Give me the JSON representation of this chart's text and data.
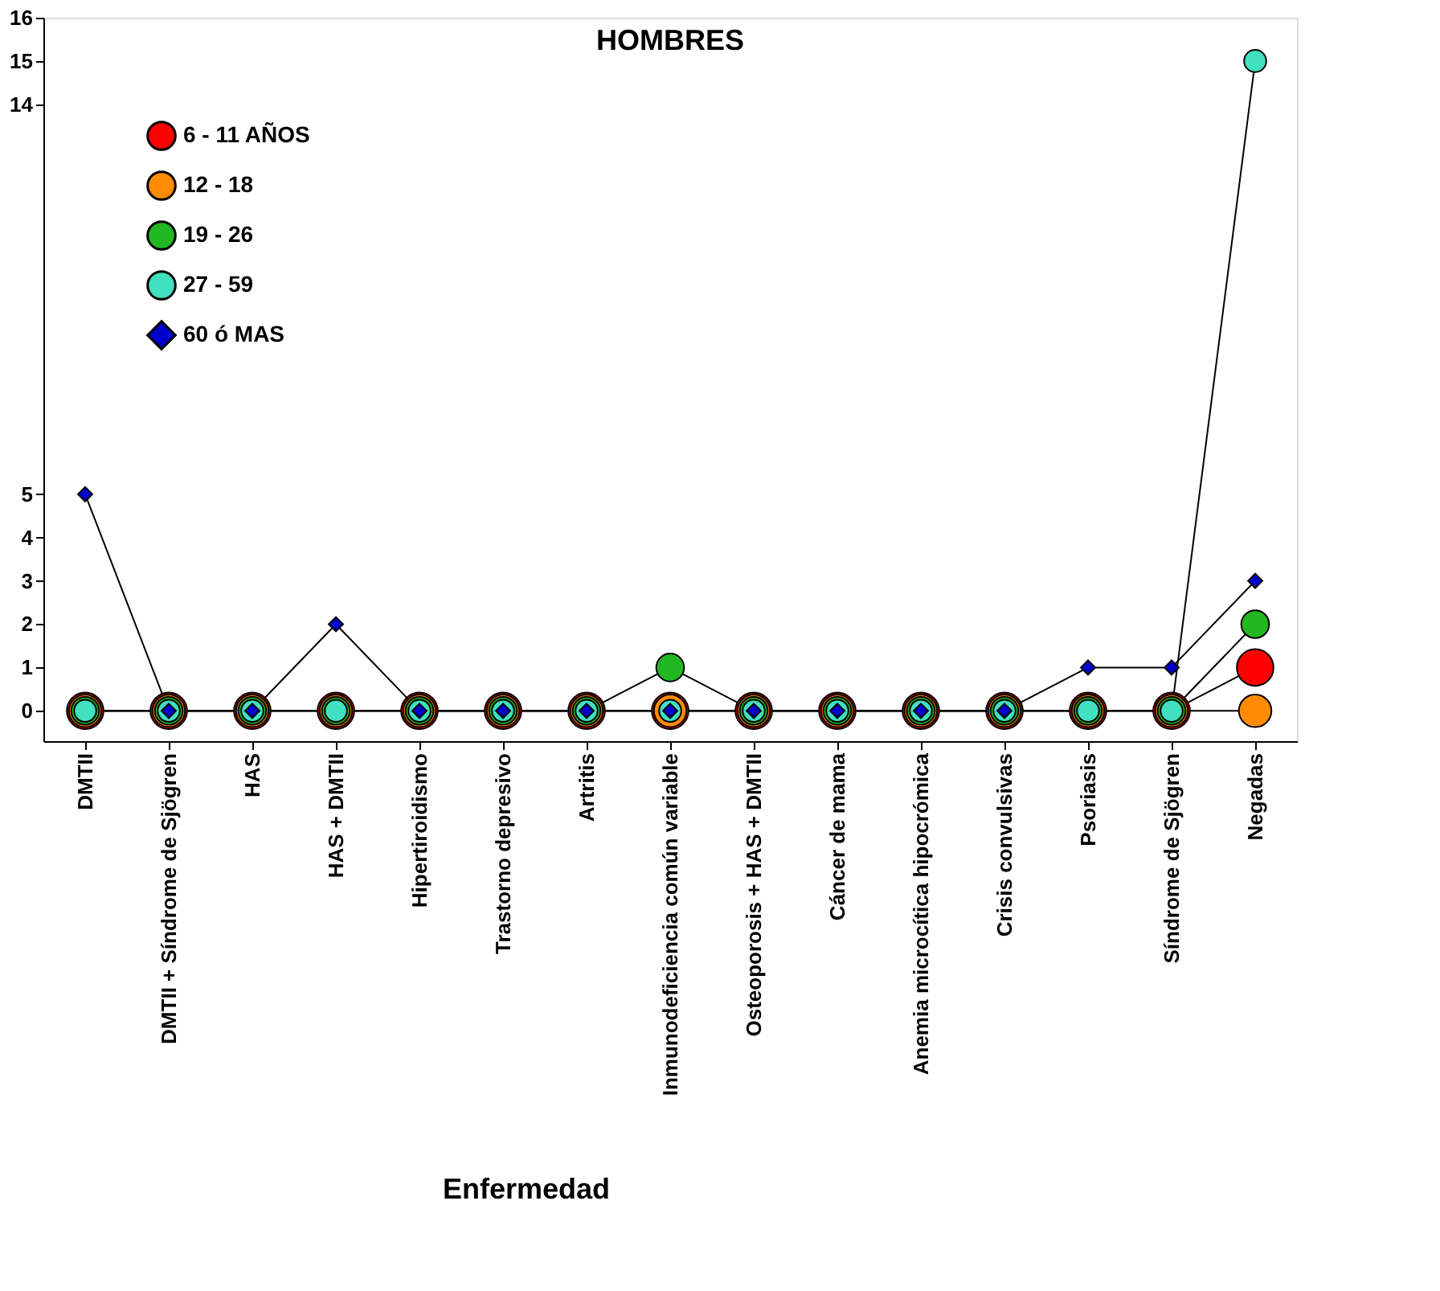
{
  "chart_data": {
    "type": "line",
    "title": "HOMBRES",
    "xlabel": "Enfermedad",
    "categories": [
      "DMTII",
      "DMTII + Síndrome de Sjögren",
      "HAS",
      "HAS + DMTII",
      "Hipertiroidismo",
      "Trastorno depresivo",
      "Artritis",
      "Inmunodeficiencia común variable",
      "Osteoporosis + HAS + DMTII",
      "Cáncer de mama",
      "Anemia microcítica hipocrómica",
      "Crisis convulsivas",
      "Psoriasis",
      "Síndrome de Sjögren",
      "Negadas"
    ],
    "series": [
      {
        "name": "6 - 11 AÑOS",
        "color": "#ff0000",
        "marker": "circle",
        "values": [
          0,
          0,
          0,
          0,
          0,
          0,
          0,
          0,
          0,
          0,
          0,
          0,
          0,
          0,
          1
        ]
      },
      {
        "name": "12 - 18",
        "color": "#ff8c00",
        "marker": "circle",
        "values": [
          0,
          0,
          0,
          0,
          0,
          0,
          0,
          0,
          0,
          0,
          0,
          0,
          0,
          0,
          0
        ]
      },
      {
        "name": "19 - 26",
        "color": "#22b822",
        "marker": "circle",
        "values": [
          0,
          0,
          0,
          0,
          0,
          0,
          0,
          1,
          0,
          0,
          0,
          0,
          0,
          0,
          2
        ]
      },
      {
        "name": "27 - 59",
        "color": "#40e0c0",
        "marker": "circle",
        "values": [
          0,
          0,
          0,
          0,
          0,
          0,
          0,
          0,
          0,
          0,
          0,
          0,
          0,
          0,
          15
        ]
      },
      {
        "name": "60 ó MAS",
        "color": "#0000cc",
        "marker": "diamond",
        "values": [
          5,
          0,
          0,
          2,
          0,
          0,
          0,
          0,
          0,
          0,
          0,
          0,
          1,
          1,
          3
        ]
      }
    ],
    "ylim": [
      -0.7,
      16
    ],
    "yticks": [
      0,
      1,
      2,
      3,
      4,
      5,
      14,
      15,
      16
    ],
    "grid": false,
    "legend": "top left",
    "line_style": "solid"
  }
}
